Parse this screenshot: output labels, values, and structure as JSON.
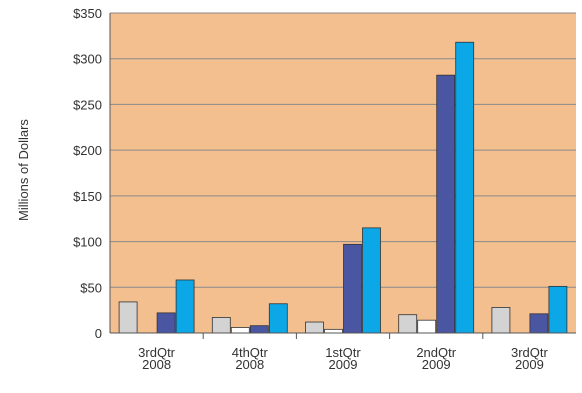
{
  "chart_data": {
    "type": "bar",
    "title": "",
    "xlabel": "",
    "ylabel": "Millions of Dollars",
    "ylim": [
      0,
      350
    ],
    "yticks": [
      {
        "value": 0,
        "label": "0"
      },
      {
        "value": 50,
        "label": "$50"
      },
      {
        "value": 100,
        "label": "$100"
      },
      {
        "value": 150,
        "label": "$150"
      },
      {
        "value": 200,
        "label": "$200"
      },
      {
        "value": 250,
        "label": "$250"
      },
      {
        "value": 300,
        "label": "$300"
      },
      {
        "value": 350,
        "label": "$350"
      }
    ],
    "categories": [
      [
        "3rdQtr",
        "2008"
      ],
      [
        "4thQtr",
        "2008"
      ],
      [
        "1stQtr",
        "2009"
      ],
      [
        "2ndQtr",
        "2009"
      ],
      [
        "3rdQtr",
        "2009"
      ]
    ],
    "grid": true,
    "legend": "none",
    "series": [
      {
        "color": "#d3d3d3",
        "values": [
          34,
          17,
          12,
          20,
          28
        ]
      },
      {
        "color": "#ffffff",
        "values": [
          0,
          6,
          4,
          14,
          0
        ]
      },
      {
        "color": "#4b56a3",
        "values": [
          22,
          8,
          97,
          282,
          21
        ]
      },
      {
        "color": "#0ba7e6",
        "values": [
          58,
          32,
          115,
          318,
          51
        ]
      }
    ],
    "colors": {
      "plot_background": "#f3bf8f",
      "gridline": "#8a8a8a",
      "bar_edge": "#333333"
    }
  }
}
